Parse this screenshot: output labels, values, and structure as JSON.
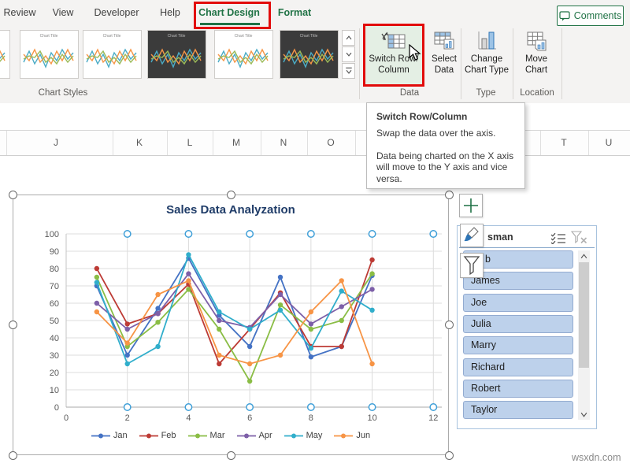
{
  "menu": {
    "items": [
      "Review",
      "View",
      "Developer",
      "Help",
      "Chart Design",
      "Format"
    ],
    "active_item": "Chart Design",
    "contextual_items": [
      "Chart Design",
      "Format"
    ]
  },
  "comments": {
    "label": "Comments"
  },
  "ribbon": {
    "gallery_group_label": "Chart Styles",
    "thumb_title": "Chart Title",
    "buttons": [
      {
        "id": "switch-row-column",
        "line1": "Switch Row/",
        "line2": "Column",
        "group": "Data",
        "highlighted": true
      },
      {
        "id": "select-data",
        "line1": "Select",
        "line2": "Data",
        "group": "Data"
      },
      {
        "id": "change-chart-type",
        "line1": "Change",
        "line2": "Chart Type",
        "group": "Type"
      },
      {
        "id": "move-chart",
        "line1": "Move",
        "line2": "Chart",
        "group": "Location"
      }
    ],
    "group_labels": [
      "Chart Styles",
      "Data",
      "Type",
      "Location"
    ]
  },
  "tooltip": {
    "title": "Switch Row/Column",
    "body1": "Swap the data over the axis.",
    "body2": "Data being charted on the X axis will move to the Y axis and vice versa."
  },
  "columns": [
    "J",
    "K",
    "L",
    "M",
    "N",
    "O",
    "T",
    "U"
  ],
  "chart_data": {
    "type": "line",
    "title": "Sales Data Analyzation",
    "x": [
      1,
      2,
      3,
      4,
      5,
      6,
      7,
      8,
      9,
      10
    ],
    "series": [
      {
        "name": "Jan",
        "color": "#4472c4",
        "values": [
          70,
          30,
          57,
          86,
          53,
          35,
          75,
          29,
          35,
          76
        ]
      },
      {
        "name": "Feb",
        "color": "#bd3b35",
        "values": [
          80,
          48,
          54,
          71,
          25,
          45,
          66,
          35,
          35,
          85
        ]
      },
      {
        "name": "Mar",
        "color": "#8abd45",
        "values": [
          75,
          35,
          49,
          68,
          45,
          15,
          59,
          45,
          50,
          77
        ]
      },
      {
        "name": "Apr",
        "color": "#7d5fa8",
        "values": [
          60,
          45,
          54,
          77,
          50,
          46,
          65,
          48,
          58,
          68
        ]
      },
      {
        "name": "May",
        "color": "#30aecb",
        "values": [
          72,
          25,
          35,
          88,
          55,
          45,
          56,
          34,
          67,
          56
        ]
      },
      {
        "name": "Jun",
        "color": "#f79445",
        "values": [
          55,
          37,
          65,
          73,
          30,
          25,
          30,
          55,
          73,
          25
        ]
      }
    ],
    "xlim": [
      0,
      12
    ],
    "ylim": [
      0,
      100
    ],
    "x_tick_step": 2,
    "y_tick_step": 10,
    "grid": true,
    "legend_position": "bottom",
    "selected_gridline_handles_x": [
      2,
      4,
      6,
      8,
      10,
      12
    ]
  },
  "slicer": {
    "title": "sman",
    "items": [
      "b",
      "James",
      "Joe",
      "Julia",
      "Marry",
      "Richard",
      "Robert",
      "Taylor"
    ]
  },
  "watermark": "wsxdn.com",
  "colors": {
    "accent_green": "#217346",
    "highlight_red": "#e20b0b",
    "slicer_item_bg": "#bdd1eb",
    "chart_title_navy": "#1f3c68",
    "gridline_handle_blue": "#3f9fd8"
  }
}
